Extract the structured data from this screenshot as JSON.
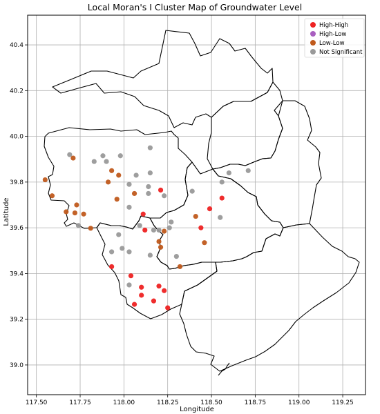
{
  "chart_data": {
    "type": "scatter",
    "title": "Local Moran's I Cluster Map of Groundwater Level",
    "xlabel": "Longitude",
    "ylabel": "Latitude",
    "xlim": [
      117.45,
      119.38
    ],
    "ylim": [
      38.87,
      40.53
    ],
    "xticks": [
      117.5,
      117.75,
      118.0,
      118.25,
      118.5,
      118.75,
      119.0,
      119.25
    ],
    "xtick_labels": [
      "117.50",
      "117.75",
      "118.00",
      "118.25",
      "118.50",
      "118.75",
      "119.00",
      "119.25"
    ],
    "yticks": [
      39.0,
      39.2,
      39.4,
      39.6,
      39.8,
      40.0,
      40.2,
      40.4
    ],
    "ytick_labels": [
      "39.0",
      "39.2",
      "39.4",
      "39.6",
      "39.8",
      "40.0",
      "40.2",
      "40.4"
    ],
    "grid": true,
    "legend_position": "top-right",
    "series": [
      {
        "name": "High-High",
        "color": "#ee2222",
        "points": [
          [
            118.21,
            39.765
          ],
          [
            118.56,
            39.73
          ],
          [
            118.49,
            39.683
          ],
          [
            118.11,
            39.66
          ],
          [
            118.12,
            39.59
          ],
          [
            118.44,
            39.6
          ],
          [
            117.93,
            39.43
          ],
          [
            118.04,
            39.39
          ],
          [
            118.1,
            39.34
          ],
          [
            118.2,
            39.345
          ],
          [
            118.1,
            39.305
          ],
          [
            118.23,
            39.325
          ],
          [
            118.17,
            39.28
          ],
          [
            118.06,
            39.265
          ],
          [
            118.25,
            39.25
          ]
        ]
      },
      {
        "name": "High-Low",
        "color": "#a95fc0",
        "points": []
      },
      {
        "name": "Low-Low",
        "color": "#c05a1c",
        "points": [
          [
            117.55,
            39.81
          ],
          [
            117.59,
            39.74
          ],
          [
            117.71,
            39.905
          ],
          [
            117.93,
            39.85
          ],
          [
            117.97,
            39.83
          ],
          [
            117.91,
            39.8
          ],
          [
            118.06,
            39.75
          ],
          [
            117.96,
            39.725
          ],
          [
            117.73,
            39.7
          ],
          [
            117.67,
            39.67
          ],
          [
            117.72,
            39.665
          ],
          [
            117.77,
            39.66
          ],
          [
            117.81,
            39.598
          ],
          [
            118.41,
            39.65
          ],
          [
            118.2,
            39.54
          ],
          [
            118.21,
            39.515
          ],
          [
            118.23,
            39.585
          ],
          [
            118.46,
            39.535
          ],
          [
            118.32,
            39.43
          ]
        ]
      },
      {
        "name": "Not Significant",
        "color": "#999999",
        "points": [
          [
            117.69,
            39.92
          ],
          [
            117.88,
            39.915
          ],
          [
            117.9,
            39.89
          ],
          [
            117.83,
            39.89
          ],
          [
            117.98,
            39.915
          ],
          [
            118.15,
            39.95
          ],
          [
            118.15,
            39.84
          ],
          [
            118.07,
            39.83
          ],
          [
            118.03,
            39.79
          ],
          [
            118.14,
            39.78
          ],
          [
            118.14,
            39.75
          ],
          [
            118.23,
            39.74
          ],
          [
            118.39,
            39.76
          ],
          [
            118.56,
            39.8
          ],
          [
            118.6,
            39.84
          ],
          [
            118.71,
            39.85
          ],
          [
            117.74,
            39.61
          ],
          [
            118.03,
            39.69
          ],
          [
            118.09,
            39.61
          ],
          [
            118.17,
            39.59
          ],
          [
            118.26,
            39.6
          ],
          [
            118.27,
            39.625
          ],
          [
            118.55,
            39.645
          ],
          [
            117.97,
            39.57
          ],
          [
            117.99,
            39.51
          ],
          [
            117.93,
            39.495
          ],
          [
            118.03,
            39.495
          ],
          [
            118.15,
            39.48
          ],
          [
            118.3,
            39.475
          ],
          [
            118.03,
            39.35
          ],
          [
            118.2,
            39.59
          ]
        ]
      }
    ]
  }
}
